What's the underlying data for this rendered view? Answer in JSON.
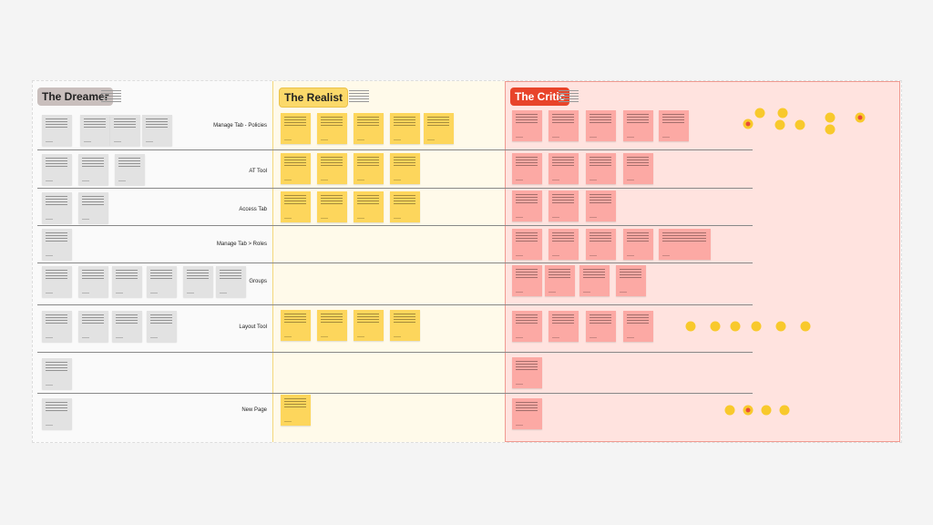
{
  "sections": {
    "dreamer": "The Dreamer",
    "realist": "The Realist",
    "critic": "The Critic"
  },
  "rows": [
    "Manage Tab - Policies",
    "AT Tool",
    "Access Tab",
    "Manage Tab > Roles",
    "Groups",
    "Layout Tool",
    "",
    "New Page"
  ],
  "colors": {
    "dreamer_sticky": "#e2e2e2",
    "realist_sticky": "#fdd65c",
    "critic_sticky": "#fca9a4",
    "critic_title": "#e8442a",
    "vote_dot": "#f8c92c"
  }
}
